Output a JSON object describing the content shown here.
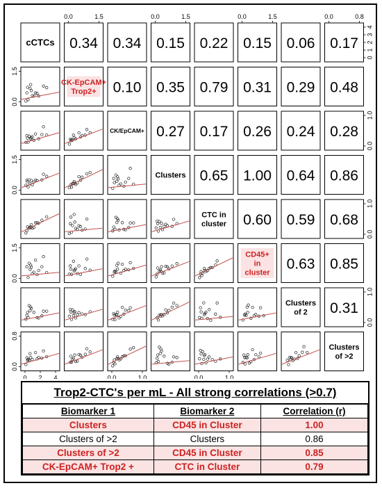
{
  "chart_data": {
    "type": "scatter",
    "variables": [
      "cCTCs",
      "CK-EpCAM+ Trop2+",
      "CK/EpCAM+",
      "Clusters",
      "CTC in cluster",
      "CD45+ in cluster",
      "Clusters of 2",
      "Clusters of >2"
    ],
    "label_lines": [
      [
        "cCTCs"
      ],
      [
        "CK-EpCAM+",
        "Trop2+"
      ],
      [
        "CK/EpCAM+"
      ],
      [
        "Clusters"
      ],
      [
        "CTC in",
        "cluster"
      ],
      [
        "CD45+",
        "in",
        "cluster"
      ],
      [
        "Clusters",
        "of 2"
      ],
      [
        "Clusters",
        "of >2"
      ]
    ],
    "label_red": [
      false,
      true,
      false,
      false,
      false,
      true,
      false,
      false
    ],
    "correlations": [
      [
        null,
        0.34,
        0.34,
        0.15,
        0.22,
        0.15,
        0.06,
        0.17
      ],
      [
        null,
        null,
        0.1,
        0.35,
        0.79,
        0.31,
        0.29,
        0.48
      ],
      [
        null,
        null,
        null,
        0.27,
        0.17,
        0.26,
        0.24,
        0.28
      ],
      [
        null,
        null,
        null,
        null,
        0.65,
        1.0,
        0.64,
        0.86
      ],
      [
        null,
        null,
        null,
        null,
        null,
        0.6,
        0.59,
        0.68
      ],
      [
        null,
        null,
        null,
        null,
        null,
        null,
        0.63,
        0.85
      ],
      [
        null,
        null,
        null,
        null,
        null,
        null,
        null,
        0.31
      ],
      [
        null,
        null,
        null,
        null,
        null,
        null,
        null,
        null
      ]
    ],
    "top_axis": [
      {
        "col": 1,
        "ticks": [
          "0.0",
          "1.5"
        ]
      },
      {
        "col": 3,
        "ticks": [
          "0.0",
          "1.5"
        ]
      },
      {
        "col": 5,
        "ticks": [
          "0.0",
          "1.5"
        ]
      },
      {
        "col": 7,
        "ticks": [
          "0.0",
          "0.8"
        ]
      }
    ],
    "bottom_axis": [
      {
        "col": 0,
        "ticks": [
          "0",
          "2",
          "4"
        ]
      },
      {
        "col": 2,
        "ticks": [
          "0.0",
          "1.0"
        ]
      },
      {
        "col": 4,
        "ticks": [
          "0.0",
          "1.0"
        ]
      }
    ],
    "left_axis": [
      {
        "row": 1,
        "ticks": [
          "0.0",
          "1.5"
        ]
      },
      {
        "row": 3,
        "ticks": [
          "0.0",
          "1.5"
        ]
      },
      {
        "row": 5,
        "ticks": [
          "0.0",
          "1.5"
        ]
      },
      {
        "row": 7,
        "ticks": [
          "0.0",
          "0.8"
        ]
      }
    ],
    "right_axis": [
      {
        "row": 0,
        "ticks": [
          "0",
          "1",
          "2",
          "3",
          "4"
        ]
      },
      {
        "row": 2,
        "ticks": [
          "0.0",
          "1.0"
        ]
      },
      {
        "row": 4,
        "ticks": [
          "0.0",
          "1.0"
        ]
      },
      {
        "row": 6,
        "ticks": [
          "0.0",
          "1.0"
        ]
      }
    ],
    "scatter_seed": [
      [
        0.3,
        0.1,
        0.05,
        0.2,
        0.45,
        0.15,
        0.55,
        0.08,
        0.25,
        0.35,
        0.12,
        0.6,
        0.4,
        0.18,
        0.7,
        0.22
      ],
      [
        0.1,
        0.4,
        0.2,
        0.6,
        0.15,
        0.8,
        0.3,
        0.5,
        0.05,
        0.7,
        0.25,
        0.9,
        0.45,
        0.35,
        0.12,
        0.55
      ]
    ],
    "colors": {
      "points": "#222222",
      "fit_line": "#c0504d",
      "highlight": "#cc2222",
      "highlight_bg": "#fbe3e3"
    }
  },
  "table": {
    "title": "Trop2-CTC's per mL - All strong correlations (>0.7)",
    "headers": [
      "Biomarker 1",
      "Biomarker 2",
      "Correlation (r)"
    ],
    "rows": [
      {
        "b1": "Clusters",
        "b2": "CD45 in Cluster",
        "r": "1.00",
        "highlight": true
      },
      {
        "b1": "Clusters of >2",
        "b2": "Clusters",
        "r": "0.86",
        "highlight": false
      },
      {
        "b1": "Clusters of >2",
        "b2": "CD45 in Cluster",
        "r": "0.85",
        "highlight": true
      },
      {
        "b1": "CK-EpCAM+ Trop2 +",
        "b2": "CTC in Cluster",
        "r": "0.79",
        "highlight": true
      }
    ]
  }
}
